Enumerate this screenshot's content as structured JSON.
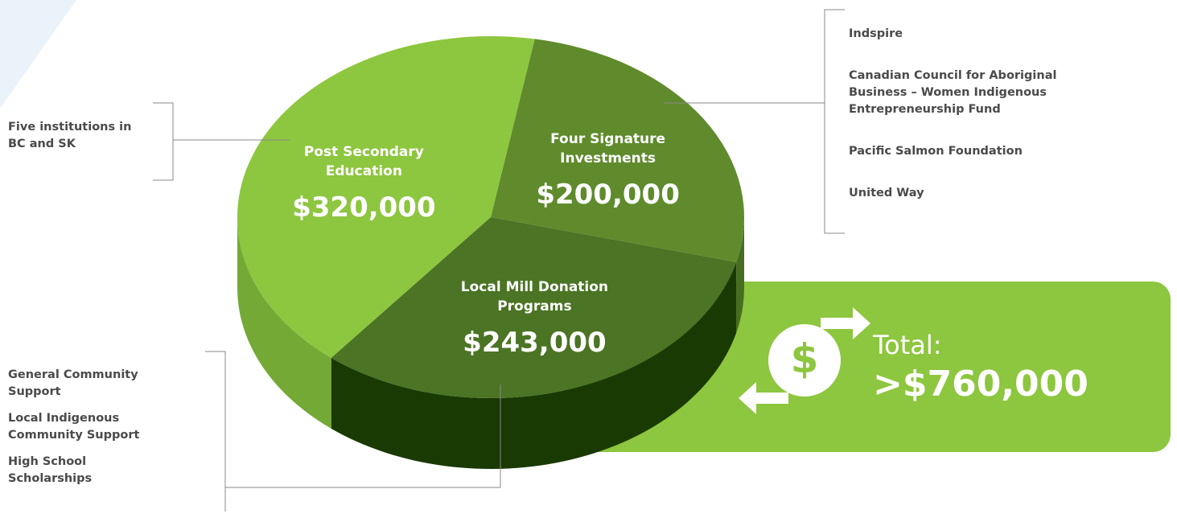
{
  "chart_data": {
    "type": "pie",
    "categories": [
      "Post Secondary Education",
      "Four Signature Investments",
      "Local Mill Donation Programs"
    ],
    "values": [
      320000,
      200000,
      243000
    ],
    "value_labels": [
      "$320,000",
      "$200,000",
      "$243,000"
    ],
    "colors": [
      "#8dc63f",
      "#5f8b2c",
      "#4b7424"
    ],
    "side_colors": [
      "#74a935",
      "#476e20",
      "#1a3a04"
    ],
    "notes": [
      [
        "Five institutions in BC and SK"
      ],
      [
        "Indspire",
        "Canadian Council for Aboriginal Business – Women Indigenous Entrepreneurship Fund",
        "Pacific Salmon Foundation",
        "United Way"
      ],
      [
        "General Community Support",
        "Local Indigenous Community Support",
        "High School Scholarships"
      ]
    ],
    "total_label": "Total:",
    "total_text": ">$760,000"
  }
}
